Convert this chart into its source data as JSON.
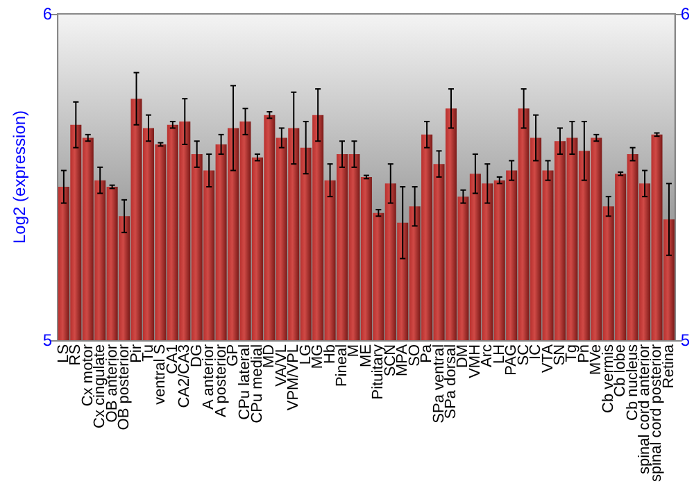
{
  "chart_data": {
    "type": "bar",
    "ylabel": "Log2 (expression)",
    "categories": [
      "LS",
      "RS",
      "Cx motor",
      "Cx cingulate",
      "OB anterior",
      "OB posterior",
      "Pir",
      "Tu",
      "ventral S",
      "CA1",
      "CA2/CA3",
      "DG",
      "A anterior",
      "A posterior",
      "GP",
      "CPu lateral",
      "CPu medial",
      "MD",
      "VA/VL",
      "VPM/VPL",
      "LG",
      "MG",
      "Hb",
      "Pineal",
      "M",
      "ME",
      "Pituitary",
      "SCN",
      "MPA",
      "SO",
      "Pa",
      "SPa ventral",
      "SPa dorsal",
      "DM",
      "VMH",
      "Arc",
      "LH",
      "PAG",
      "SC",
      "IC",
      "VTA",
      "SN",
      "Tg",
      "Pn",
      "MVe",
      "Cb vermis",
      "Cb lobe",
      "Cb nucleus",
      "spinal cord anterior",
      "spinal cord posterior",
      "Retina"
    ],
    "values": [
      5.47,
      5.66,
      5.62,
      5.49,
      5.47,
      5.38,
      5.74,
      5.65,
      5.6,
      5.66,
      5.67,
      5.57,
      5.52,
      5.6,
      5.65,
      5.67,
      5.56,
      5.69,
      5.62,
      5.65,
      5.59,
      5.69,
      5.49,
      5.57,
      5.57,
      5.5,
      5.39,
      5.48,
      5.36,
      5.41,
      5.63,
      5.54,
      5.71,
      5.44,
      5.51,
      5.48,
      5.49,
      5.52,
      5.71,
      5.62,
      5.52,
      5.61,
      5.62,
      5.58,
      5.62,
      5.41,
      5.51,
      5.57,
      5.48,
      5.63,
      5.37
    ],
    "errors": [
      0.05,
      0.07,
      0.01,
      0.04,
      0.005,
      0.05,
      0.08,
      0.04,
      0.005,
      0.01,
      0.07,
      0.04,
      0.05,
      0.03,
      0.13,
      0.04,
      0.01,
      0.01,
      0.03,
      0.11,
      0.08,
      0.08,
      0.05,
      0.04,
      0.04,
      0.005,
      0.01,
      0.06,
      0.11,
      0.06,
      0.04,
      0.04,
      0.06,
      0.02,
      0.06,
      0.06,
      0.01,
      0.03,
      0.06,
      0.07,
      0.03,
      0.04,
      0.05,
      0.09,
      0.01,
      0.03,
      0.005,
      0.02,
      0.04,
      0.005,
      0.11
    ],
    "color": "#b8302e",
    "ylim": [
      5,
      6
    ],
    "yticks": [
      5,
      6
    ],
    "y2lim": [
      5,
      6
    ],
    "y2ticks": [
      5,
      6
    ],
    "grid": false
  }
}
